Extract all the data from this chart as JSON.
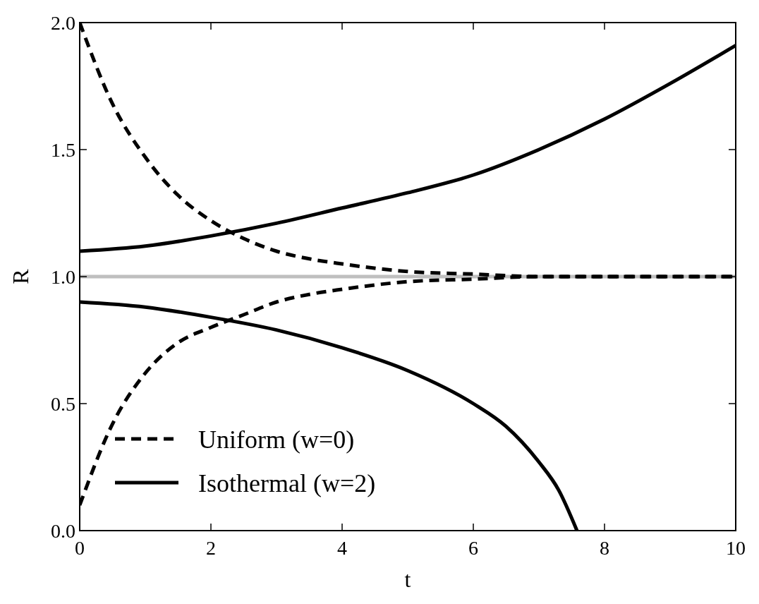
{
  "chart_data": {
    "type": "line",
    "xlabel": "t",
    "ylabel": "R",
    "xlim": [
      0,
      10
    ],
    "ylim": [
      0,
      2
    ],
    "xticks": [
      0,
      2,
      4,
      6,
      8,
      10
    ],
    "yticks": [
      {
        "value": 0,
        "label": "0.0"
      },
      {
        "value": 0.5,
        "label": "0.5"
      },
      {
        "value": 1,
        "label": "1.0"
      },
      {
        "value": 1.5,
        "label": "1.5"
      },
      {
        "value": 2,
        "label": "2.0"
      }
    ],
    "series": [
      {
        "name": "Uniform (w=0)",
        "color": "#000000",
        "line_style": "dashed",
        "x": [
          0,
          0.5,
          1,
          1.5,
          2,
          2.5,
          3,
          3.5,
          4,
          5,
          6,
          7,
          8,
          10
        ],
        "values": [
          2.0,
          1.68,
          1.47,
          1.32,
          1.22,
          1.15,
          1.1,
          1.07,
          1.05,
          1.02,
          1.01,
          1.0,
          1.0,
          1.0
        ]
      },
      {
        "color": "#000000",
        "line_style": "dashed",
        "x": [
          0,
          0.5,
          1,
          1.5,
          2,
          2.5,
          3,
          3.5,
          4,
          5,
          6,
          7,
          8,
          10
        ],
        "values": [
          0.1,
          0.42,
          0.62,
          0.74,
          0.8,
          0.85,
          0.9,
          0.93,
          0.95,
          0.98,
          0.99,
          1.0,
          1.0,
          1.0
        ]
      },
      {
        "name": "Isothermal (w=2)",
        "color": "#000000",
        "line_style": "solid",
        "x": [
          0,
          1,
          2,
          3,
          4,
          5,
          6,
          7,
          8,
          9,
          10
        ],
        "values": [
          1.1,
          1.12,
          1.16,
          1.21,
          1.27,
          1.33,
          1.4,
          1.5,
          1.62,
          1.76,
          1.91
        ]
      },
      {
        "color": "#000000",
        "line_style": "solid",
        "x": [
          0,
          1,
          2,
          3,
          4,
          5,
          6,
          6.5,
          7,
          7.3,
          7.58
        ],
        "values": [
          0.9,
          0.88,
          0.84,
          0.79,
          0.72,
          0.63,
          0.5,
          0.41,
          0.27,
          0.16,
          0.0
        ]
      }
    ],
    "ref_lines": [
      {
        "axis": "y",
        "value": 1,
        "color": "#bfbfbf"
      }
    ],
    "legend": "bottom left",
    "grid": false
  }
}
